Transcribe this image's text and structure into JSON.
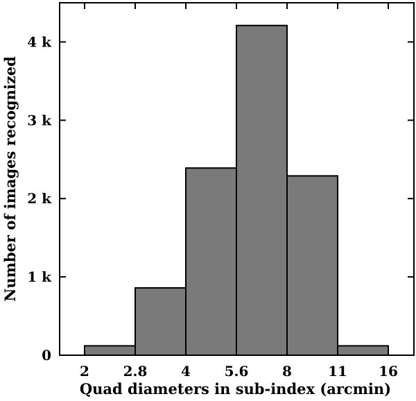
{
  "chart_data": {
    "type": "bar",
    "title": "",
    "xlabel": "Quad diameters in sub-index (arcmin)",
    "ylabel": "Number of images recognized",
    "bin_edges": [
      "2",
      "2.8",
      "4",
      "5.6",
      "8",
      "11",
      "16"
    ],
    "categories": [
      "2–2.8",
      "2.8–4",
      "4–5.6",
      "5.6–8",
      "8–11",
      "11–16"
    ],
    "values": [
      120,
      860,
      2390,
      4210,
      2290,
      120
    ],
    "ylim": [
      0,
      4500
    ],
    "y_ticks": [
      0,
      1000,
      2000,
      3000,
      4000
    ],
    "y_tick_labels": [
      "0",
      "1 k",
      "2 k",
      "3 k",
      "4 k"
    ],
    "grid": false,
    "legend": "none",
    "bar_color": "#7a7a7a",
    "edge_color": "#000000"
  }
}
